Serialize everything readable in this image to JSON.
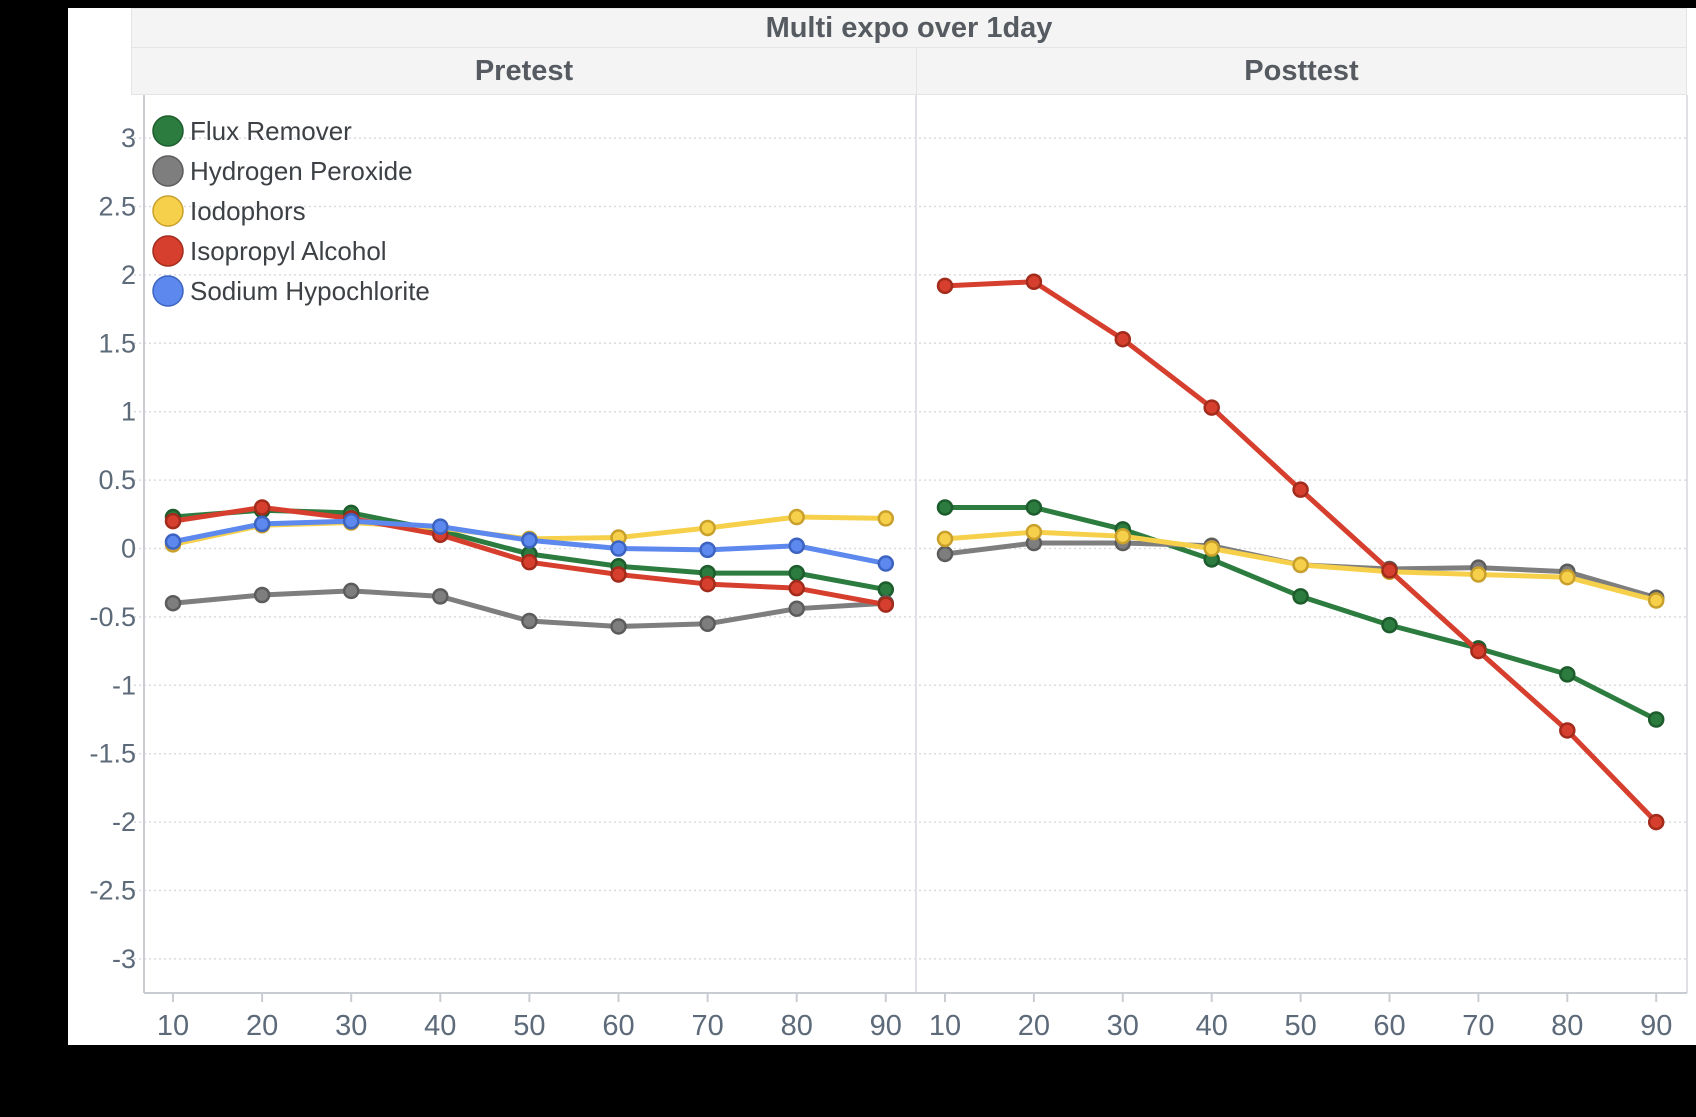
{
  "title": "Multi expo over 1day",
  "panels": {
    "pretest_label": "Pretest",
    "posttest_label": "Posttest"
  },
  "legend": {
    "items": [
      {
        "label": "Flux Remover",
        "color": "#2c7c3f",
        "ring": "#1d5c2c"
      },
      {
        "label": "Hydrogen Peroxide",
        "color": "#7e7e7e",
        "ring": "#5c5c5c"
      },
      {
        "label": "Iodophors",
        "color": "#f7d04b",
        "ring": "#c8a02b"
      },
      {
        "label": "Isopropyl Alcohol",
        "color": "#d63f2d",
        "ring": "#a22b1c"
      },
      {
        "label": "Sodium Hypochlorite",
        "color": "#5d88ee",
        "ring": "#3c63c0"
      }
    ]
  },
  "axes": {
    "y_tick_labels": [
      "3",
      "2.5",
      "2",
      "1.5",
      "1",
      "0.5",
      "0",
      "-0.5",
      "-1",
      "-1.5",
      "-2",
      "-2.5",
      "-3"
    ],
    "x_tick_labels": [
      "10",
      "20",
      "30",
      "40",
      "50",
      "60",
      "70",
      "80",
      "90"
    ]
  },
  "style_colors": {
    "grid": "#d9dcdf",
    "axis_line": "#c9cdd2",
    "panel_border": "#dfe1e4",
    "tick_text": "#5d6a79",
    "legend_text": "#3d4145",
    "header_bg": "#f4f4f5"
  },
  "chart_data": {
    "type": "line",
    "title": "Multi expo over 1day",
    "x": [
      10,
      20,
      30,
      40,
      50,
      60,
      70,
      80,
      90
    ],
    "xlabel": "",
    "ylabel": "",
    "ylim": [
      -3,
      3
    ],
    "ytick_step": 0.5,
    "grid": "dotted-horizontal",
    "legend_position": "top-left-inside",
    "panels": [
      {
        "name": "Pretest",
        "series": [
          {
            "name": "Flux Remover",
            "values": [
              0.23,
              0.28,
              0.26,
              0.13,
              -0.04,
              -0.13,
              -0.18,
              -0.18,
              -0.3
            ]
          },
          {
            "name": "Hydrogen Peroxide",
            "values": [
              -0.4,
              -0.34,
              -0.31,
              -0.35,
              -0.53,
              -0.57,
              -0.55,
              -0.44,
              -0.4
            ]
          },
          {
            "name": "Iodophors",
            "values": [
              0.03,
              0.17,
              0.19,
              0.15,
              0.07,
              0.08,
              0.15,
              0.23,
              0.22
            ]
          },
          {
            "name": "Isopropyl Alcohol",
            "values": [
              0.2,
              0.3,
              0.22,
              0.1,
              -0.1,
              -0.19,
              -0.26,
              -0.29,
              -0.41
            ]
          },
          {
            "name": "Sodium Hypochlorite",
            "values": [
              0.05,
              0.18,
              0.2,
              0.16,
              0.06,
              0.0,
              -0.01,
              0.02,
              -0.11
            ]
          }
        ]
      },
      {
        "name": "Posttest",
        "series": [
          {
            "name": "Flux Remover",
            "values": [
              0.3,
              0.3,
              0.14,
              -0.08,
              -0.35,
              -0.56,
              -0.73,
              -0.92,
              -1.25
            ]
          },
          {
            "name": "Hydrogen Peroxide",
            "values": [
              -0.04,
              0.04,
              0.04,
              0.02,
              -0.12,
              -0.15,
              -0.14,
              -0.17,
              -0.36
            ]
          },
          {
            "name": "Iodophors",
            "values": [
              0.07,
              0.12,
              0.09,
              0.0,
              -0.12,
              -0.17,
              -0.19,
              -0.21,
              -0.38
            ]
          },
          {
            "name": "Isopropyl Alcohol",
            "values": [
              1.92,
              1.95,
              1.53,
              1.03,
              0.43,
              -0.16,
              -0.75,
              -1.33,
              -2.0
            ]
          }
        ]
      }
    ]
  }
}
